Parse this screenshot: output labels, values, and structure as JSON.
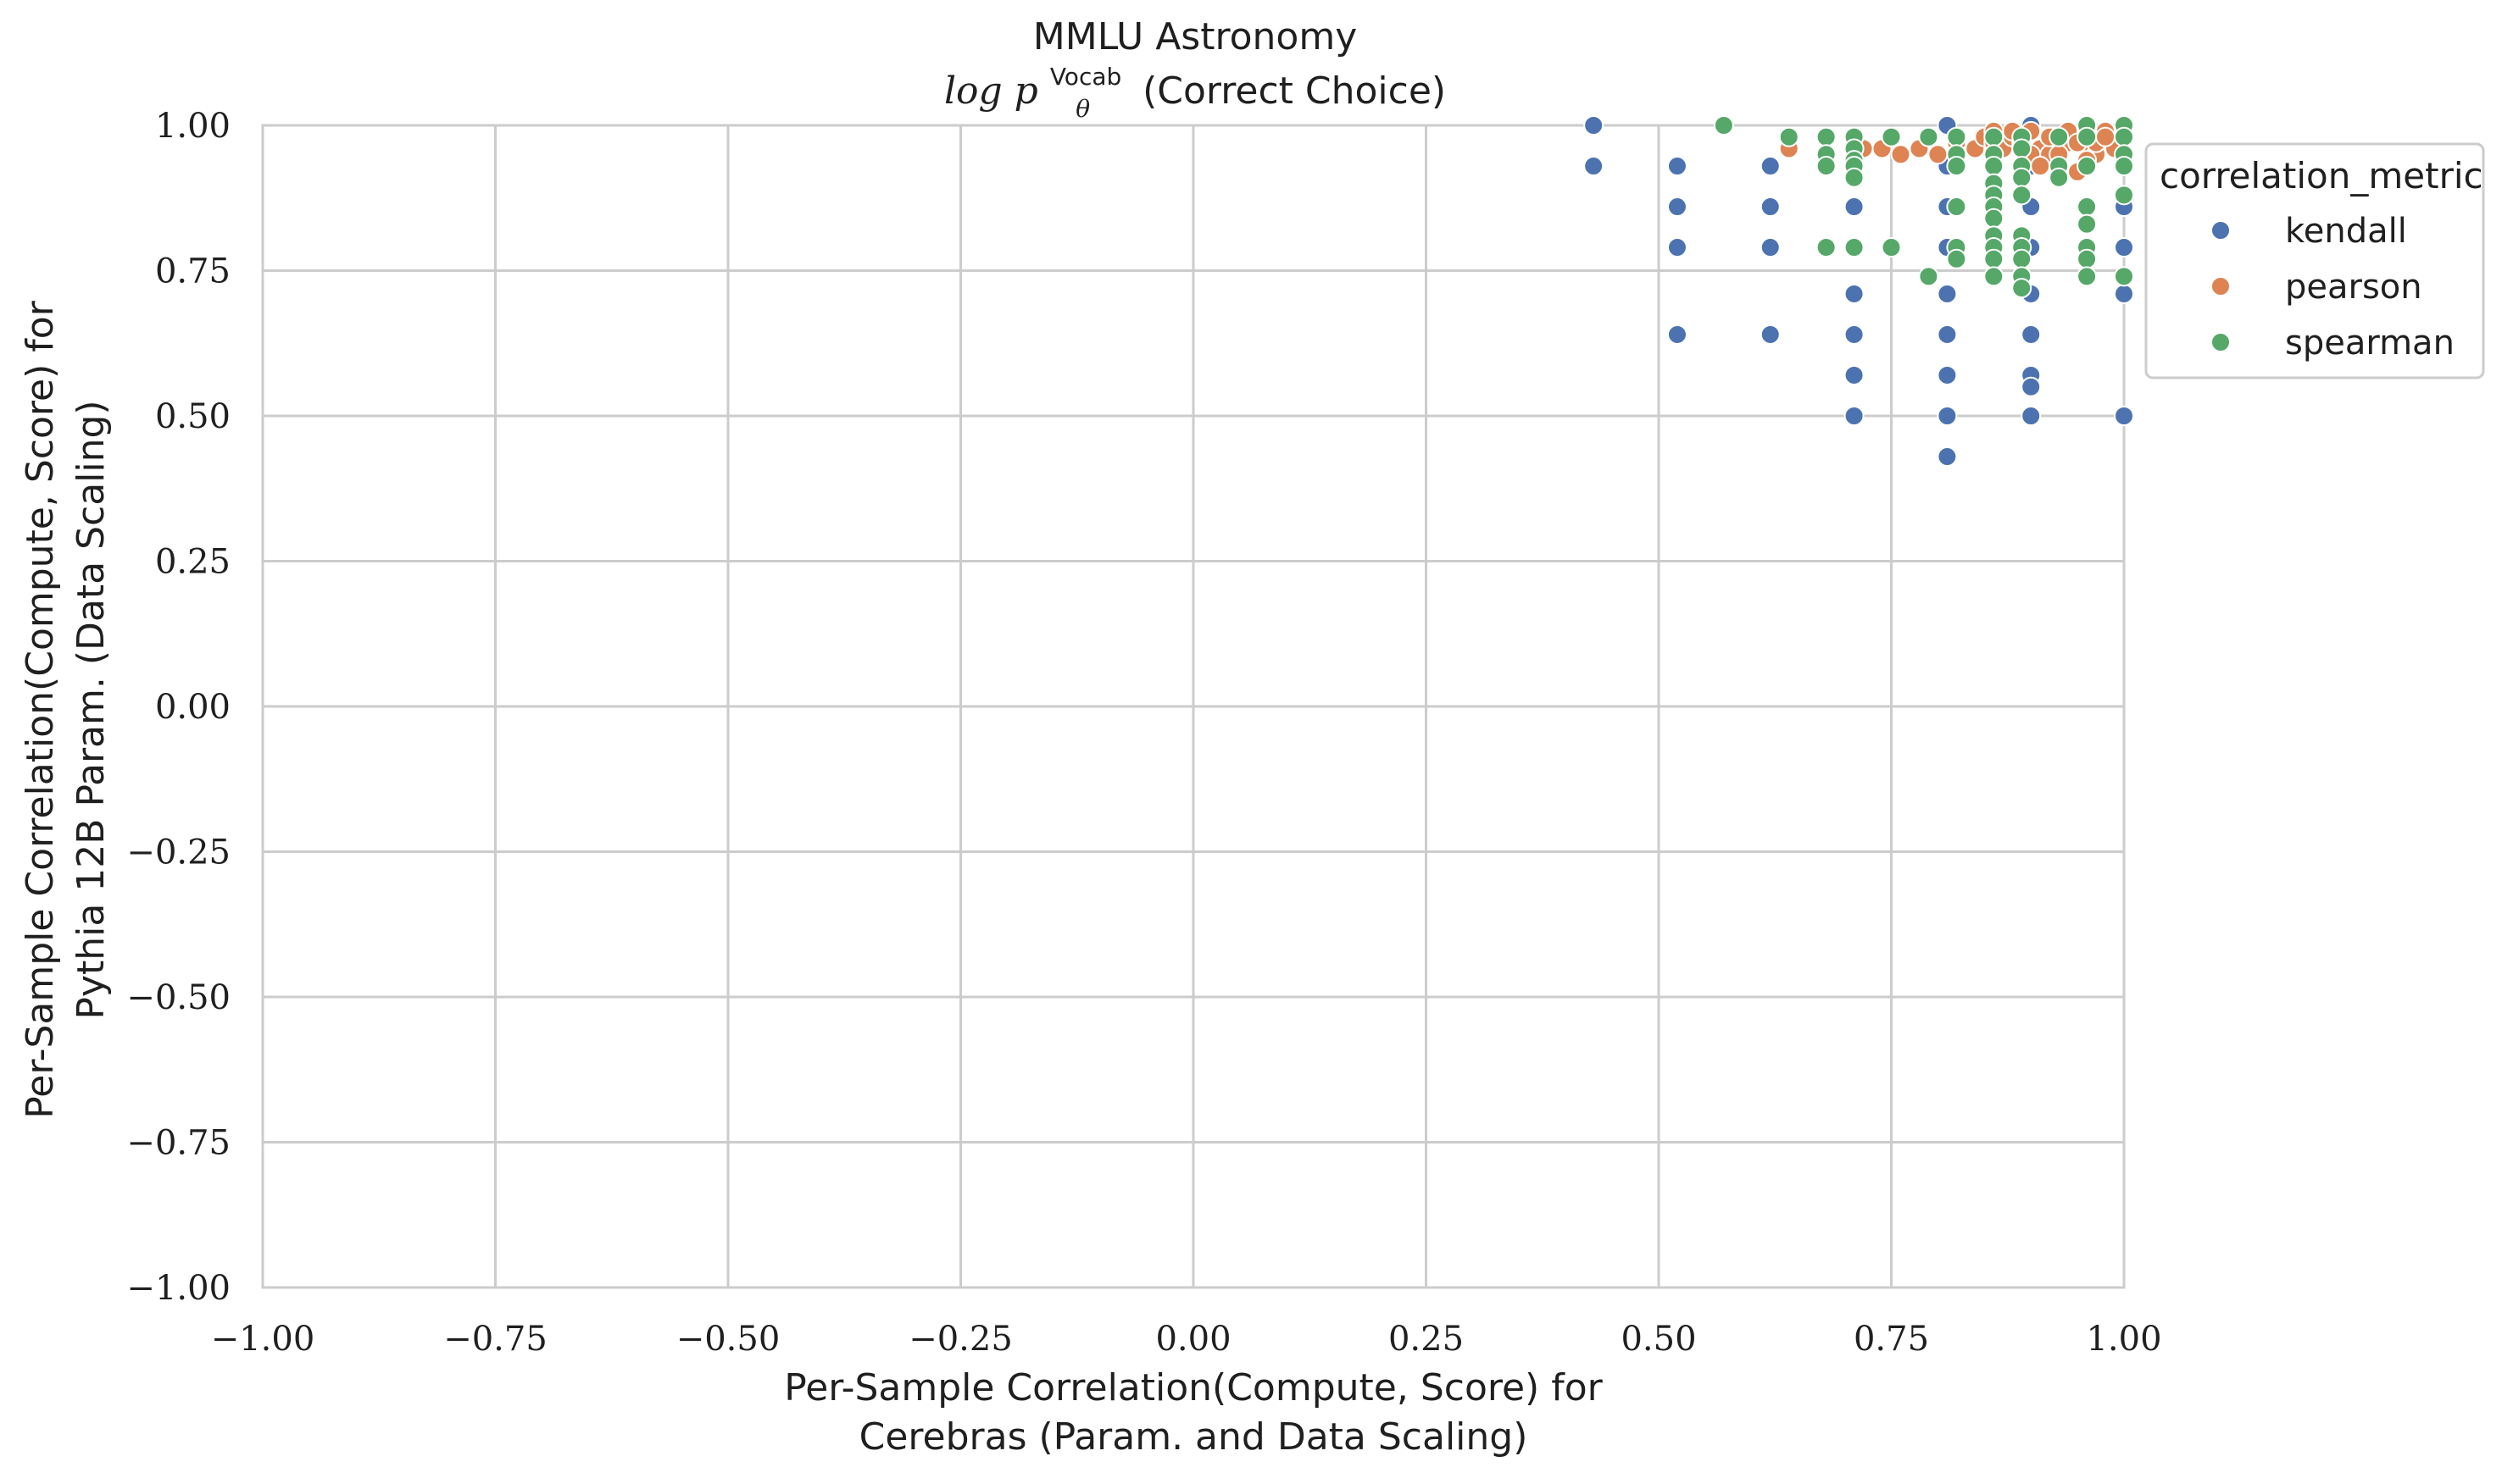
{
  "chart_data": {
    "type": "scatter",
    "title": "MMLU Astronomy",
    "subtitle": {
      "prefix": "log p",
      "superscript": "Vocab",
      "subscript": "θ",
      "suffix": "(Correct Choice)"
    },
    "xlabel": [
      "Per-Sample Correlation(Compute, Score) for",
      "Cerebras (Param. and Data Scaling)"
    ],
    "ylabel": [
      "Per-Sample Correlation(Compute, Score) for",
      "Pythia 12B Param. (Data Scaling)"
    ],
    "xlim": [
      -1.0,
      1.0
    ],
    "ylim": [
      -1.0,
      1.0
    ],
    "x_ticks": [
      "−1.00",
      "−0.75",
      "−0.50",
      "−0.25",
      "0.00",
      "0.25",
      "0.50",
      "0.75",
      "1.00"
    ],
    "y_ticks": [
      "1.00",
      "0.75",
      "0.50",
      "0.25",
      "0.00",
      "−0.25",
      "−0.50",
      "−0.75",
      "−1.00"
    ],
    "grid": true,
    "legend": {
      "title": "correlation_metric",
      "placement": "outside-top-right",
      "entries": [
        "kendall",
        "pearson",
        "spearman"
      ]
    },
    "colors": {
      "kendall": "#4c72b0",
      "pearson": "#dd8452",
      "spearman": "#55a868",
      "grid": "#cccccc",
      "background": "#ffffff"
    },
    "series": [
      {
        "name": "kendall",
        "x": [
          0.43,
          0.43,
          0.52,
          0.52,
          0.52,
          0.52,
          0.62,
          0.62,
          0.62,
          0.62,
          0.71,
          0.71,
          0.71,
          0.71,
          0.71,
          0.71,
          0.71,
          0.81,
          0.81,
          0.81,
          0.81,
          0.81,
          0.81,
          0.81,
          0.81,
          0.81,
          0.9,
          0.9,
          0.9,
          0.9,
          0.9,
          0.9,
          0.9,
          0.9,
          0.9,
          1.0,
          1.0,
          1.0,
          1.0,
          1.0,
          1.0
        ],
        "y": [
          1.0,
          0.93,
          0.93,
          0.86,
          0.79,
          0.64,
          0.93,
          0.86,
          0.79,
          0.64,
          0.86,
          0.79,
          0.71,
          0.64,
          0.57,
          0.5,
          0.93,
          1.0,
          0.93,
          0.86,
          0.79,
          0.71,
          0.64,
          0.57,
          0.5,
          0.43,
          0.86,
          0.79,
          0.71,
          0.64,
          0.57,
          0.55,
          0.5,
          0.93,
          1.0,
          1.0,
          0.93,
          0.86,
          0.71,
          0.5,
          0.79
        ]
      },
      {
        "name": "pearson",
        "x": [
          0.64,
          0.72,
          0.74,
          0.76,
          0.78,
          0.8,
          0.82,
          0.84,
          0.85,
          0.86,
          0.87,
          0.88,
          0.89,
          0.9,
          0.91,
          0.92,
          0.93,
          0.94,
          0.95,
          0.96,
          0.97,
          0.98,
          0.92,
          0.94,
          0.96,
          0.9,
          0.93,
          0.95,
          0.97,
          0.88,
          0.91,
          0.99,
          0.86,
          0.98,
          0.93,
          0.95
        ],
        "y": [
          0.96,
          0.96,
          0.96,
          0.95,
          0.96,
          0.95,
          0.97,
          0.96,
          0.98,
          0.97,
          0.96,
          0.98,
          0.97,
          0.99,
          0.96,
          0.95,
          0.93,
          0.97,
          0.98,
          0.96,
          0.95,
          0.99,
          0.98,
          0.99,
          0.94,
          0.95,
          0.91,
          0.92,
          0.97,
          0.99,
          0.93,
          0.96,
          0.99,
          0.98,
          0.95,
          0.97
        ]
      },
      {
        "name": "spearman",
        "x": [
          0.57,
          0.64,
          0.68,
          0.68,
          0.68,
          0.68,
          0.71,
          0.71,
          0.71,
          0.71,
          0.71,
          0.71,
          0.75,
          0.75,
          0.79,
          0.79,
          0.82,
          0.82,
          0.82,
          0.82,
          0.82,
          0.82,
          0.86,
          0.86,
          0.86,
          0.86,
          0.86,
          0.86,
          0.86,
          0.86,
          0.86,
          0.86,
          0.86,
          0.89,
          0.89,
          0.89,
          0.89,
          0.89,
          0.89,
          0.89,
          0.89,
          0.89,
          0.89,
          0.93,
          0.93,
          0.93,
          0.96,
          0.96,
          0.96,
          0.96,
          0.96,
          0.96,
          0.96,
          0.96,
          1.0,
          1.0,
          1.0,
          1.0,
          1.0,
          1.0
        ],
        "y": [
          1.0,
          0.98,
          0.98,
          0.95,
          0.93,
          0.79,
          0.98,
          0.96,
          0.94,
          0.93,
          0.91,
          0.79,
          0.98,
          0.79,
          0.98,
          0.74,
          0.98,
          0.95,
          0.86,
          0.79,
          0.77,
          0.93,
          0.98,
          0.95,
          0.93,
          0.9,
          0.88,
          0.86,
          0.84,
          0.81,
          0.79,
          0.77,
          0.74,
          0.98,
          0.96,
          0.93,
          0.91,
          0.88,
          0.81,
          0.79,
          0.77,
          0.74,
          0.72,
          0.98,
          0.93,
          0.91,
          1.0,
          0.98,
          0.93,
          0.86,
          0.83,
          0.79,
          0.77,
          0.74,
          1.0,
          0.98,
          0.95,
          0.93,
          0.88,
          0.74
        ]
      }
    ]
  }
}
